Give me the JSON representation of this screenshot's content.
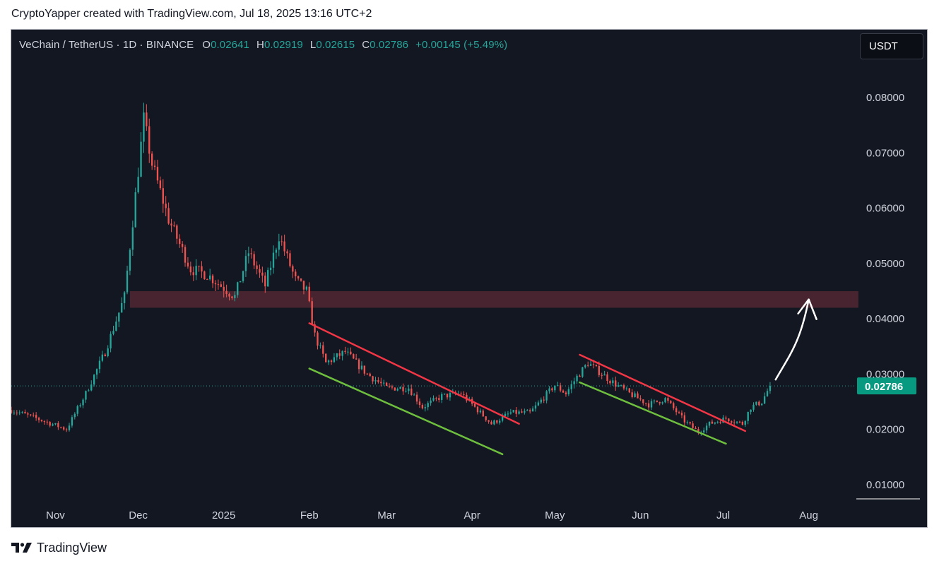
{
  "caption": "CryptoYapper created with TradingView.com, Jul 18, 2025 13:16 UTC+2",
  "legend": {
    "symbol": "VeChain / TetherUS · 1D · BINANCE",
    "open_label": "O",
    "open": "0.02641",
    "high_label": "H",
    "high": "0.02919",
    "low_label": "L",
    "low": "0.02615",
    "close_label": "C",
    "close": "0.02786",
    "change": "+0.00145 (+5.49%)"
  },
  "currency_button": "USDT",
  "footer_brand": "TradingView",
  "colors": {
    "background": "#131722",
    "up": "#26a69a",
    "down": "#ef5350",
    "resistance_zone": "#5a2a34",
    "upper_channel": "#f23645",
    "lower_channel": "#6fbf3f",
    "arrow": "#ffffff",
    "price_tag": "#089981"
  },
  "chart_data": {
    "type": "candlestick",
    "interval": "1D",
    "x_range": [
      "2024-10-16",
      "2025-08-18"
    ],
    "y_range": [
      0.0064,
      0.0923
    ],
    "y_ticks": [
      "0.08000",
      "0.07000",
      "0.06000",
      "0.05000",
      "0.04000",
      "0.03000",
      "0.02000",
      "0.01000"
    ],
    "x_ticks": [
      {
        "date": "2024-11-01",
        "label": "Nov"
      },
      {
        "date": "2024-12-01",
        "label": "Dec"
      },
      {
        "date": "2025-01-01",
        "label": "2025"
      },
      {
        "date": "2025-02-01",
        "label": "Feb"
      },
      {
        "date": "2025-03-01",
        "label": "Mar"
      },
      {
        "date": "2025-04-01",
        "label": "Apr"
      },
      {
        "date": "2025-05-01",
        "label": "May"
      },
      {
        "date": "2025-06-01",
        "label": "Jun"
      },
      {
        "date": "2025-07-01",
        "label": "Jul"
      },
      {
        "date": "2025-08-01",
        "label": "Aug"
      }
    ],
    "last_price": "0.02786",
    "anchors": [
      [
        "2024-10-16",
        0.0235
      ],
      [
        "2024-10-25",
        0.022
      ],
      [
        "2024-11-05",
        0.02
      ],
      [
        "2024-11-12",
        0.0265
      ],
      [
        "2024-11-19",
        0.034
      ],
      [
        "2024-11-26",
        0.044
      ],
      [
        "2024-12-03",
        0.076
      ],
      [
        "2024-12-06",
        0.068
      ],
      [
        "2024-12-12",
        0.058
      ],
      [
        "2024-12-20",
        0.049
      ],
      [
        "2024-12-26",
        0.048
      ],
      [
        "2025-01-05",
        0.044
      ],
      [
        "2025-01-10",
        0.052
      ],
      [
        "2025-01-16",
        0.046
      ],
      [
        "2025-01-21",
        0.055
      ],
      [
        "2025-01-27",
        0.047
      ],
      [
        "2025-01-31",
        0.045
      ],
      [
        "2025-02-03",
        0.037
      ],
      [
        "2025-02-07",
        0.032
      ],
      [
        "2025-02-14",
        0.034
      ],
      [
        "2025-02-22",
        0.03
      ],
      [
        "2025-03-01",
        0.0275
      ],
      [
        "2025-03-09",
        0.0275
      ],
      [
        "2025-03-14",
        0.024
      ],
      [
        "2025-03-21",
        0.026
      ],
      [
        "2025-03-28",
        0.0265
      ],
      [
        "2025-04-03",
        0.0235
      ],
      [
        "2025-04-08",
        0.021
      ],
      [
        "2025-04-15",
        0.023
      ],
      [
        "2025-04-22",
        0.023
      ],
      [
        "2025-05-01",
        0.028
      ],
      [
        "2025-05-05",
        0.0265
      ],
      [
        "2025-05-09",
        0.0295
      ],
      [
        "2025-05-13",
        0.032
      ],
      [
        "2025-05-22",
        0.0285
      ],
      [
        "2025-05-28",
        0.0265
      ],
      [
        "2025-06-04",
        0.0245
      ],
      [
        "2025-06-10",
        0.0255
      ],
      [
        "2025-06-17",
        0.0215
      ],
      [
        "2025-06-22",
        0.0195
      ],
      [
        "2025-06-26",
        0.021
      ],
      [
        "2025-07-02",
        0.022
      ],
      [
        "2025-07-08",
        0.021
      ],
      [
        "2025-07-11",
        0.024
      ],
      [
        "2025-07-15",
        0.025
      ],
      [
        "2025-07-18",
        0.0279
      ]
    ],
    "drawings": {
      "resistance_zone": {
        "from": "2024-11-28",
        "to": "2025-08-19",
        "low": 0.042,
        "high": 0.045
      },
      "channel_1_upper": [
        [
          "2025-02-01",
          0.0392
        ],
        [
          "2025-04-18",
          0.021
        ]
      ],
      "channel_1_lower": [
        [
          "2025-02-01",
          0.031
        ],
        [
          "2025-04-12",
          0.0155
        ]
      ],
      "channel_2_upper": [
        [
          "2025-05-10",
          0.0335
        ],
        [
          "2025-07-09",
          0.0197
        ]
      ],
      "channel_2_lower": [
        [
          "2025-05-10",
          0.0285
        ],
        [
          "2025-07-02",
          0.0174
        ]
      ],
      "projection_arrow": {
        "from": [
          "2025-07-20",
          0.029
        ],
        "to": [
          "2025-08-01",
          0.0435
        ]
      }
    }
  }
}
